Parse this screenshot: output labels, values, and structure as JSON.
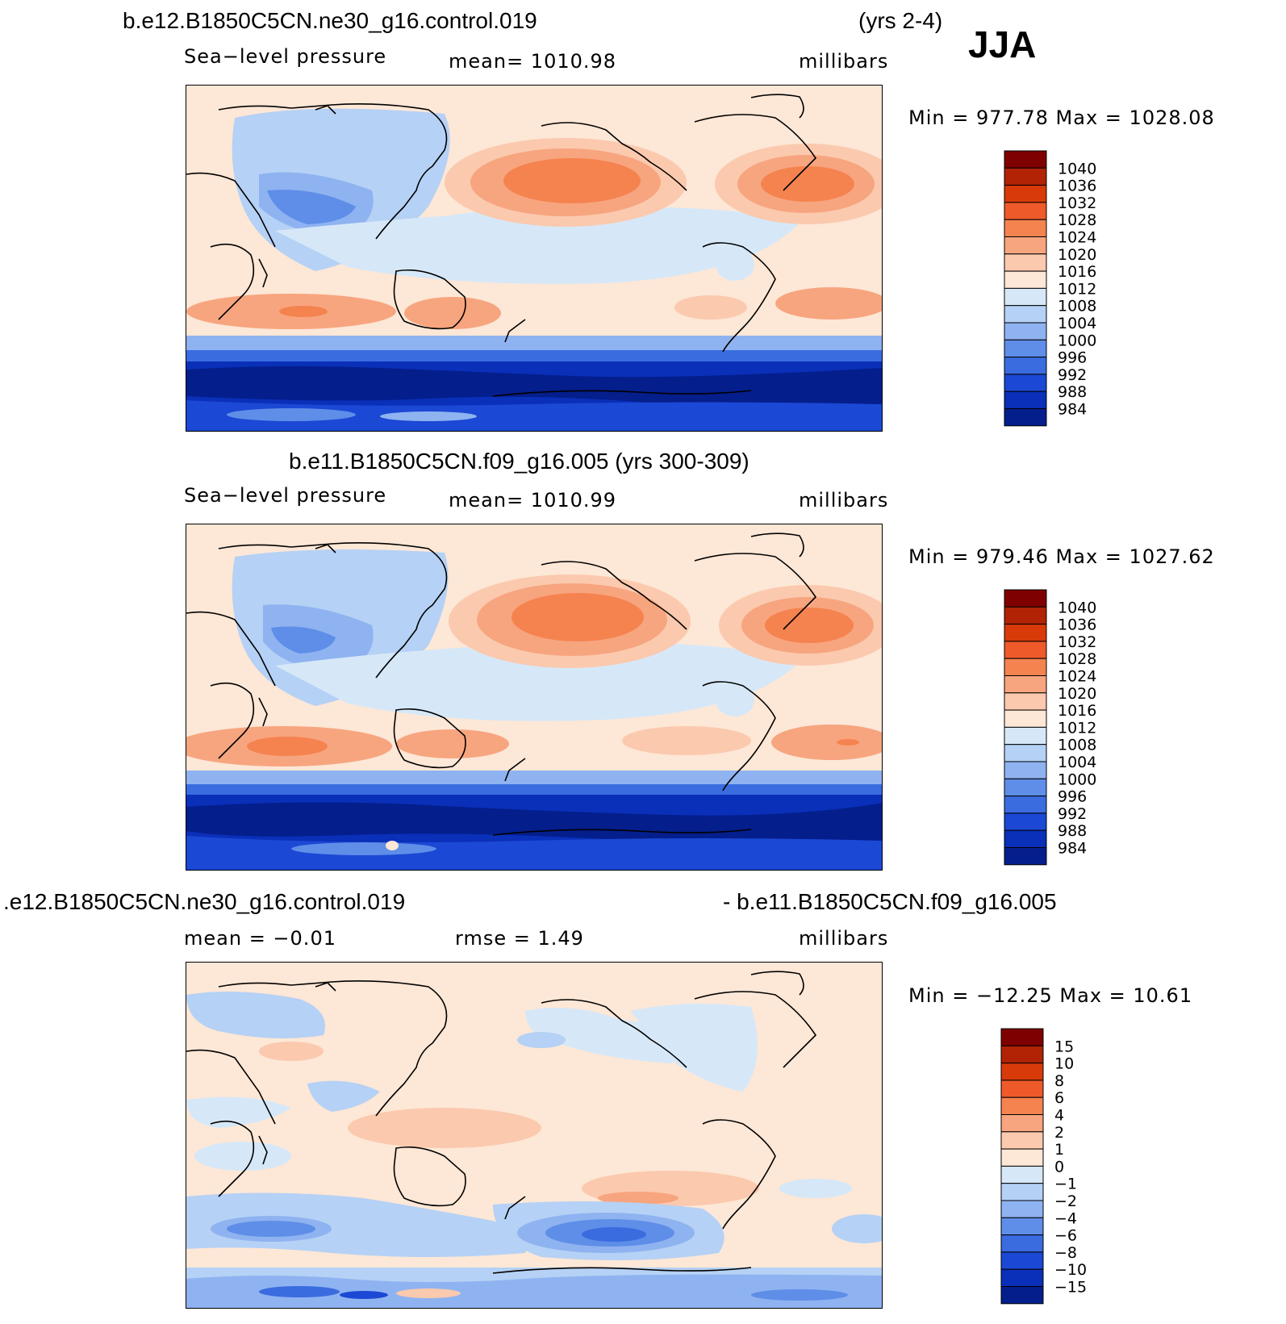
{
  "season": "JJA",
  "panels": [
    {
      "title": "b.e12.B1850C5CN.ne30_g16.control.019",
      "years": "(yrs 2-4)",
      "left_label": "Sea−level pressure",
      "center_label": "mean=  1010.98",
      "units": "millibars",
      "minmax": "Min  =  977.78  Max  =  1028.08",
      "legend_levels": [
        "1040",
        "1036",
        "1032",
        "1028",
        "1024",
        "1020",
        "1016",
        "1012",
        "1008",
        "1004",
        "1000",
        "996",
        "992",
        "988",
        "984"
      ]
    },
    {
      "title": "b.e11.B1850C5CN.f09_g16.005 (yrs 300-309)",
      "left_label": "Sea−level pressure",
      "center_label": "mean=  1010.99",
      "units": "millibars",
      "minmax": "Min  =  979.46  Max  =  1027.62",
      "legend_levels": [
        "1040",
        "1036",
        "1032",
        "1028",
        "1024",
        "1020",
        "1016",
        "1012",
        "1008",
        "1004",
        "1000",
        "996",
        "992",
        "988",
        "984"
      ]
    },
    {
      "title_left": ".e12.B1850C5CN.ne30_g16.control.019",
      "title_right": "- b.e11.B1850C5CN.f09_g16.005",
      "left_label": "mean  =    −0.01",
      "center_label": "rmse  =     1.49",
      "units": "millibars",
      "minmax": "Min  =  −12.25  Max  =    10.61",
      "legend_levels": [
        "15",
        "10",
        "8",
        "6",
        "4",
        "2",
        "1",
        "0",
        "−1",
        "−2",
        "−4",
        "−6",
        "−8",
        "−10",
        "−15"
      ]
    }
  ],
  "colors": {
    "scale": [
      "#7f0000",
      "#b22305",
      "#d93a0a",
      "#ee5a2a",
      "#f5834f",
      "#f7a57f",
      "#fbc9ae",
      "#fde7d6",
      "#d6e8f8",
      "#b5d1f5",
      "#8fb3f0",
      "#5e8ee8",
      "#3a6ce0",
      "#1b48d4",
      "#0a2fb8",
      "#041e8c"
    ],
    "land_line": "#000000"
  }
}
